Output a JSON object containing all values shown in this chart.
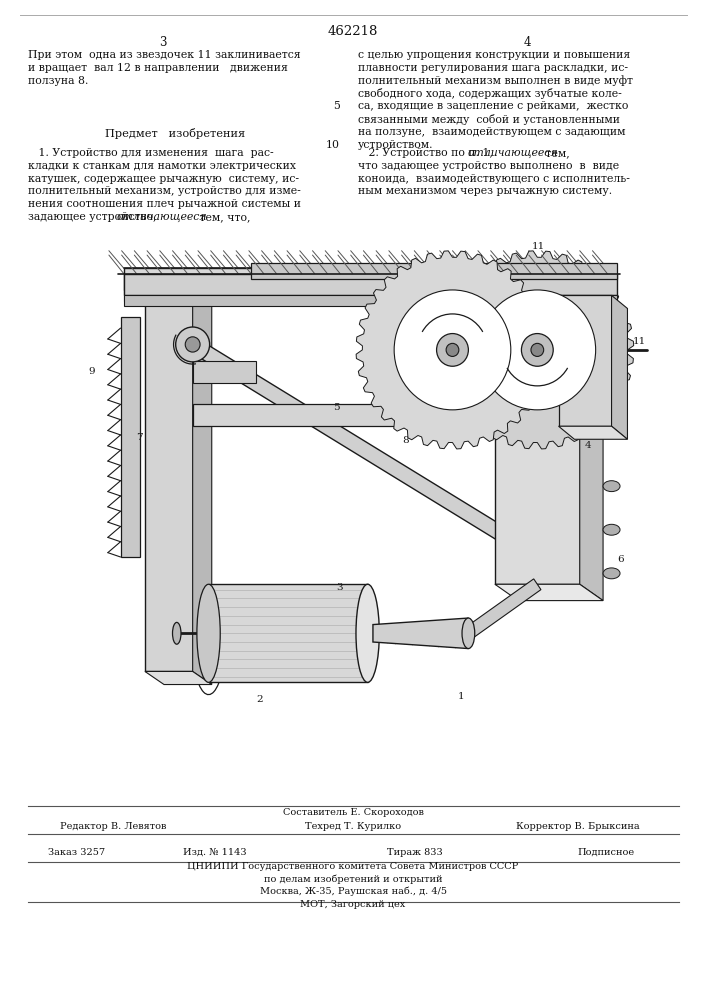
{
  "patent_number": "462218",
  "page_left": "3",
  "page_right": "4",
  "bg_color": "#ffffff",
  "left_col_lines": [
    "При этом  одна из звездочек 11 заклинивается",
    "и вращает  вал 12 в направлении   движения",
    "ползуна 8."
  ],
  "right_col_lines": [
    "с целью упрощения конструкции и повышения",
    "плавности регулирования шага раскладки, ис-",
    "полнительный механизм выполнен в виде муфт",
    "свободного хода, содержащих зубчатые коле-",
    "са, входящие в зацепление с рейками,  жестко",
    "связанными между  собой и установленными",
    "на ползуне,  взаимодействующем с задающим",
    "устройством."
  ],
  "right_col_num": "5",
  "right_col_num2": "10",
  "predmet_title": "Предмет   изобретения",
  "claim1_lines": [
    "   1. Устройство для изменения  шага  рас-",
    "кладки к станкам для намотки электрических",
    "катушек, содержащее рычажную  систему, ис-",
    "полнительный механизм, устройство для изме-",
    "нения соотношения плеч рычажной системы и",
    "задающее устройство, отличающееся тем, что,"
  ],
  "claim1_italic": "отличающееся",
  "claim2_lines": [
    "   2. Устройство по п. 1, отличающееся тем,",
    "что задающее устройство выполнено  в  виде",
    "коноида,  взаимодействующего с исполнитель-",
    "ным механизмом через рычажную систему."
  ],
  "claim2_italic": "отличающееся",
  "footer_sestavitel": "Составитель Е. Скороходов",
  "footer_redaktor": "Редактор В. Левятов",
  "footer_tehred": "Техред Т. Курилко",
  "footer_korrektor": "Корректор В. Брыксина",
  "footer_zakaz": "Заказ 3257",
  "footer_izd": "Изд. № 1143",
  "footer_tirazh": "Тираж 833",
  "footer_podpisnoe": "Подписное",
  "footer_cniipи": "ЦНИИПИ Государственного комитета Совета Министров СССР",
  "footer_dela": "по делам изобретений и открытий",
  "footer_addr": "Москва, Ж-35, Раушская наб., д. 4/5",
  "footer_mot": "МОТ, Загорский цех"
}
